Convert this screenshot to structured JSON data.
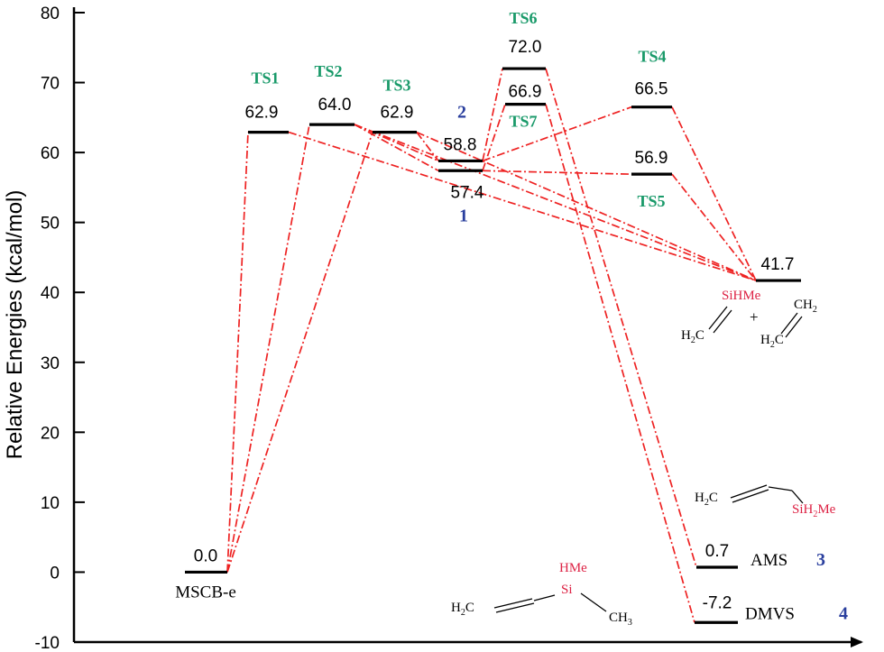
{
  "colors": {
    "ts_label": "#1a9a6a",
    "compound_number": "#2a3f9e",
    "path_line": "#ee2222",
    "si_text": "#dd2244",
    "level": "#000000"
  },
  "axis": {
    "ylabel": "Relative Energies (kcal/mol)",
    "ylim": [
      -10,
      80
    ],
    "ticks": [
      "80",
      "70",
      "60",
      "50",
      "40",
      "30",
      "20",
      "10",
      "0",
      "-10"
    ]
  },
  "levels": [
    {
      "id": "mscb",
      "value_label": "0.0",
      "value": 0.0,
      "names": [
        "MSCB-e"
      ]
    },
    {
      "id": "ts1",
      "value_label": "62.9",
      "value": 62.9,
      "names": [
        "TS1"
      ]
    },
    {
      "id": "ts2",
      "value_label": "64.0",
      "value": 64.0,
      "names": [
        "TS2"
      ]
    },
    {
      "id": "ts3",
      "value_label": "62.9",
      "value": 62.9,
      "names": [
        "TS3"
      ]
    },
    {
      "id": "i2",
      "value_label": "58.8",
      "value": 58.8,
      "names": [
        "2"
      ]
    },
    {
      "id": "i1",
      "value_label": "57.4",
      "value": 57.4,
      "names": [
        "1"
      ]
    },
    {
      "id": "ts6",
      "value_label": "72.0",
      "value": 72.0,
      "names": [
        "TS6"
      ]
    },
    {
      "id": "ts7",
      "value_label": "66.9",
      "value": 66.9,
      "names": [
        "TS7"
      ]
    },
    {
      "id": "ts4",
      "value_label": "66.5",
      "value": 66.5,
      "names": [
        "TS4"
      ]
    },
    {
      "id": "ts5",
      "value_label": "56.9",
      "value": 56.9,
      "names": [
        "TS5"
      ]
    },
    {
      "id": "p41",
      "value_label": "41.7",
      "value": 41.7,
      "names": []
    },
    {
      "id": "ams",
      "value_label": "0.7",
      "value": 0.7,
      "names": [
        "AMS",
        "3"
      ]
    },
    {
      "id": "dmvs",
      "value_label": "-7.2",
      "value": -7.2,
      "names": [
        "DMVS",
        "4"
      ]
    }
  ],
  "connections": [
    [
      "mscb",
      "ts1"
    ],
    [
      "mscb",
      "ts2"
    ],
    [
      "mscb",
      "ts3"
    ],
    [
      "ts1",
      "p41"
    ],
    [
      "ts2",
      "p41"
    ],
    [
      "ts3",
      "p41"
    ],
    [
      "ts2",
      "i2"
    ],
    [
      "ts2",
      "i1"
    ],
    [
      "ts3",
      "i2"
    ],
    [
      "i2",
      "ts6"
    ],
    [
      "i2",
      "ts4"
    ],
    [
      "i1",
      "ts7"
    ],
    [
      "i1",
      "ts5"
    ],
    [
      "ts4",
      "p41"
    ],
    [
      "ts5",
      "p41"
    ],
    [
      "ts6",
      "ams"
    ],
    [
      "ts7",
      "dmvs"
    ]
  ],
  "structures": {
    "p41_silene": {
      "si": "SiHMe",
      "ch": "H",
      "ch_sub": "2",
      "ch_tail": "C"
    },
    "p41_plus": "+",
    "p41_ethylene": {
      "top": "CH",
      "top_sub": "2",
      "bottom": "H",
      "bottom_sub": "2",
      "bottom_tail": "C"
    },
    "ams": {
      "left": "H",
      "left_sub": "2",
      "left_tail": "C",
      "si": "SiH",
      "si_sub": "2",
      "si_tail": "Me"
    },
    "dmvs": {
      "left": "H",
      "left_sub": "2",
      "left_tail": "C",
      "si": "Si",
      "si_top": "HMe",
      "right": "CH",
      "right_sub": "3"
    }
  }
}
